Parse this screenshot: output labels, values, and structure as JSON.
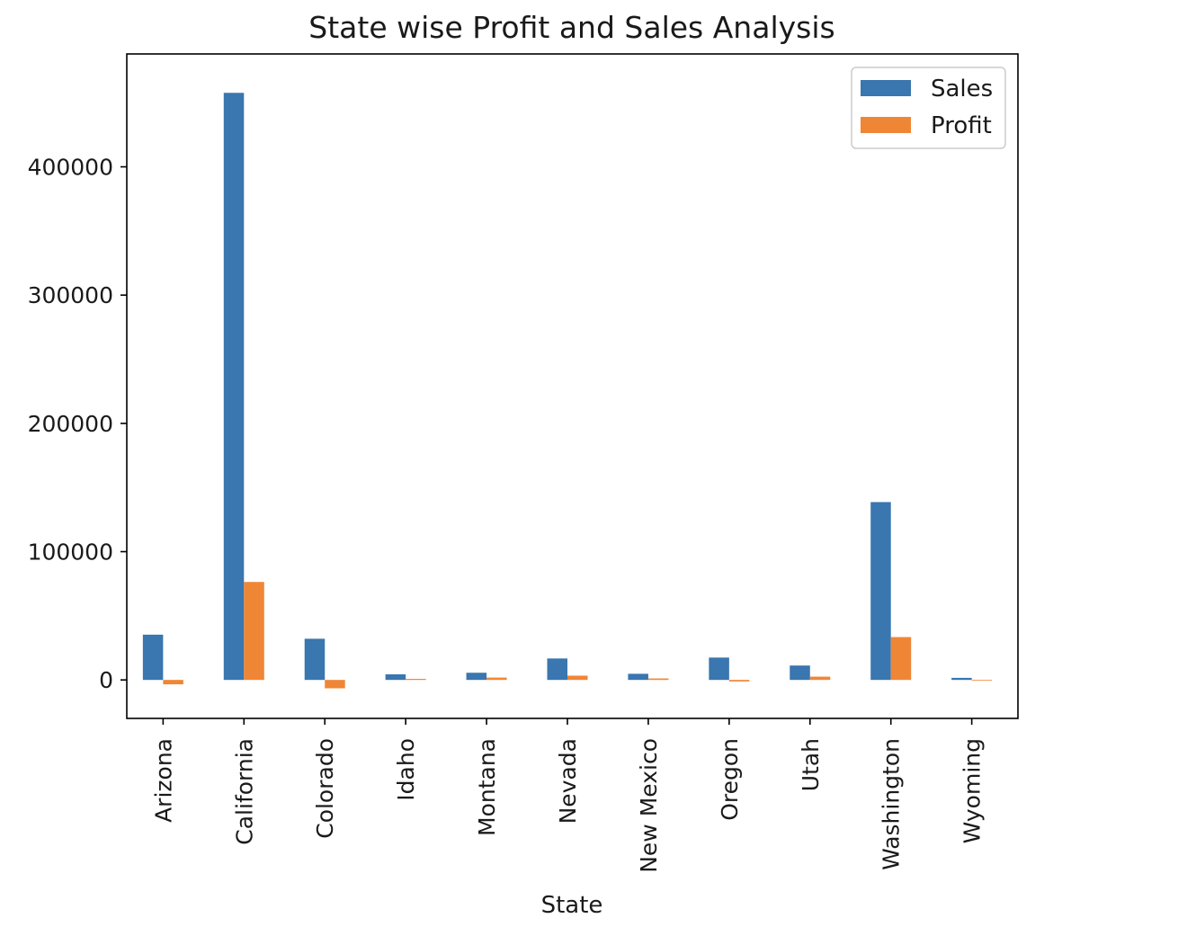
{
  "chart_data": {
    "type": "bar",
    "title": "State wise Profit and Sales Analysis",
    "xlabel": "State",
    "ylabel": "",
    "categories": [
      "Arizona",
      "California",
      "Colorado",
      "Idaho",
      "Montana",
      "Nevada",
      "New Mexico",
      "Oregon",
      "Utah",
      "Washington",
      "Wyoming"
    ],
    "series": [
      {
        "name": "Sales",
        "color": "#3a76af",
        "values": [
          35282,
          457688,
          32108,
          4382,
          5589,
          16729,
          4784,
          17431,
          11220,
          138641,
          1603
        ]
      },
      {
        "name": "Profit",
        "color": "#ef8636",
        "values": [
          -3428,
          76381,
          -6528,
          827,
          1834,
          3317,
          1157,
          -1190,
          2547,
          33403,
          100
        ]
      }
    ],
    "ylim": [
      -30000,
      488000
    ],
    "yticks": [
      0,
      100000,
      200000,
      300000,
      400000
    ],
    "ytick_labels": [
      "0",
      "100000",
      "200000",
      "300000",
      "400000"
    ],
    "grid": false,
    "legend_position": "top-right"
  }
}
